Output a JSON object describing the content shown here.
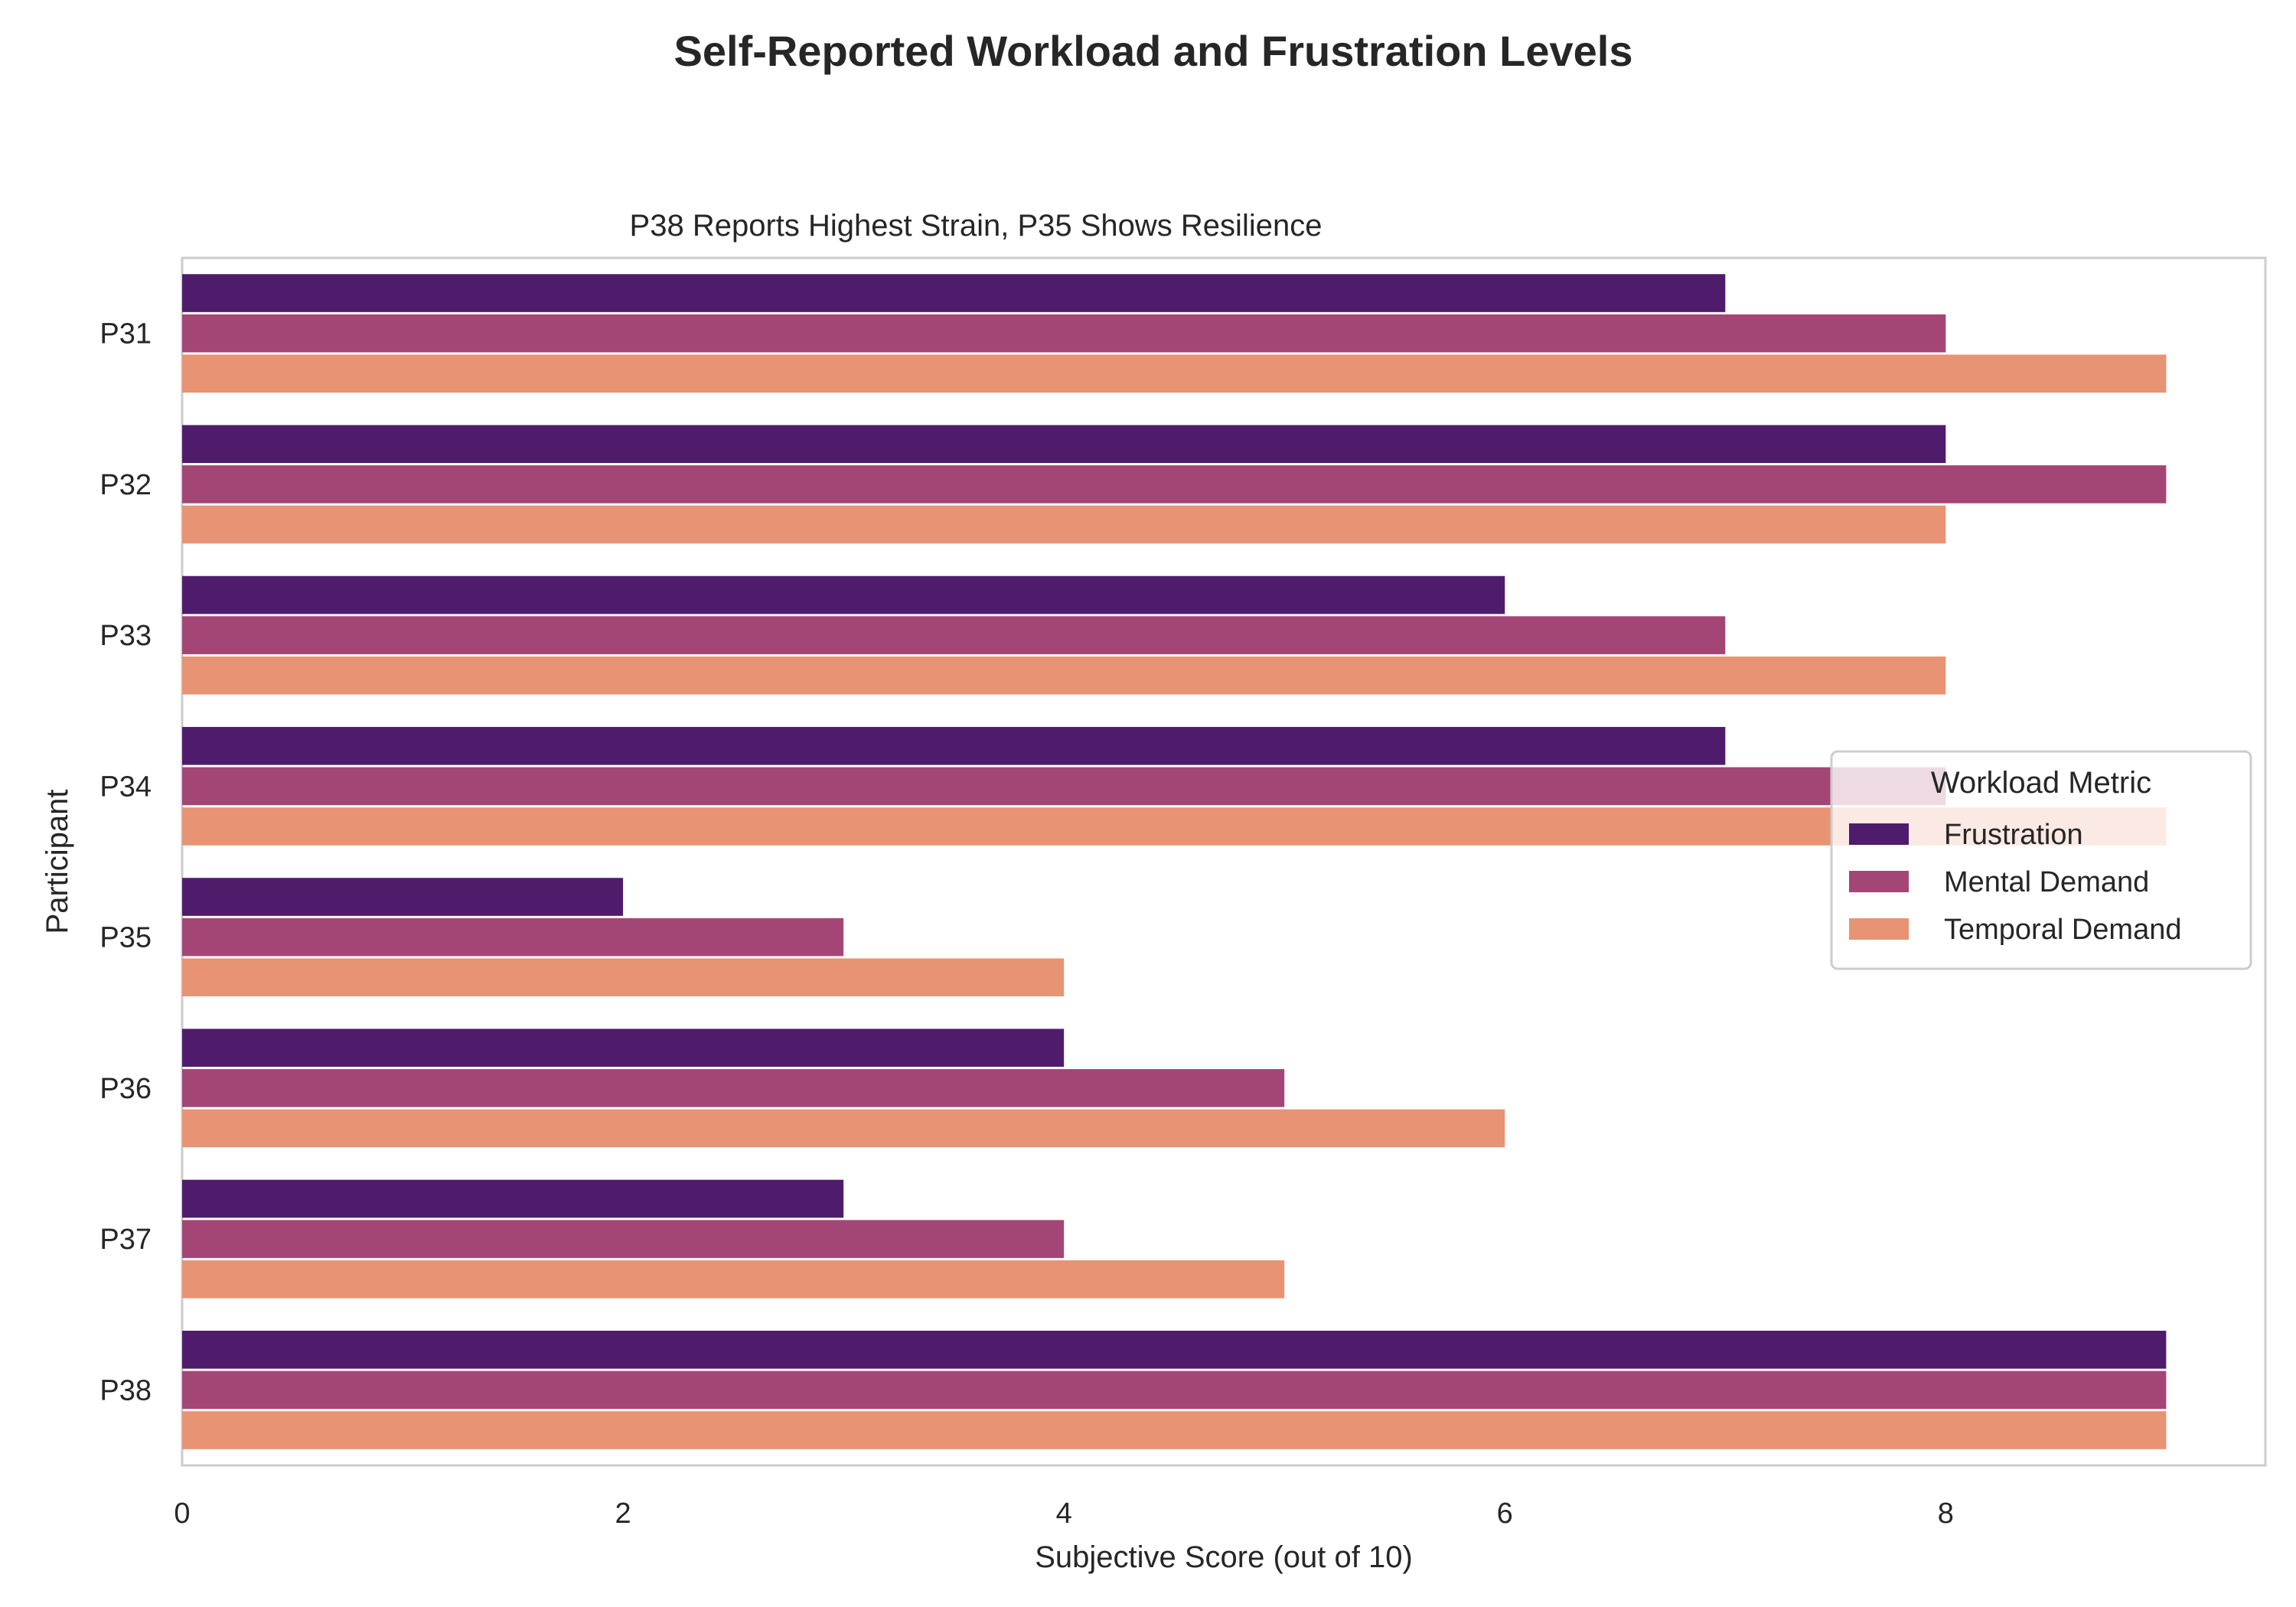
{
  "chart_data": {
    "type": "bar",
    "orientation": "horizontal",
    "suptitle": "Self-Reported Workload and Frustration Levels",
    "title": "P38 Reports Highest Strain, P35 Shows Resilience",
    "xlabel": "Subjective Score (out of 10)",
    "ylabel": "Participant",
    "xlim": [
      0,
      9.45
    ],
    "xticks": [
      "0",
      "2",
      "4",
      "6",
      "8"
    ],
    "grid": false,
    "categories": [
      "P31",
      "P32",
      "P33",
      "P34",
      "P35",
      "P36",
      "P37",
      "P38"
    ],
    "series": [
      {
        "name": "Frustration",
        "color": "#4f1c6b",
        "values": [
          7,
          8,
          6,
          7,
          2,
          4,
          3,
          9
        ]
      },
      {
        "name": "Mental Demand",
        "color": "#a44675",
        "values": [
          8,
          9,
          7,
          8,
          3,
          5,
          4,
          9
        ]
      },
      {
        "name": "Temporal Demand",
        "color": "#e89373",
        "values": [
          9,
          8,
          8,
          9,
          4,
          6,
          5,
          9
        ]
      }
    ],
    "legend": {
      "title": "Workload Metric",
      "position": "center-right"
    }
  }
}
